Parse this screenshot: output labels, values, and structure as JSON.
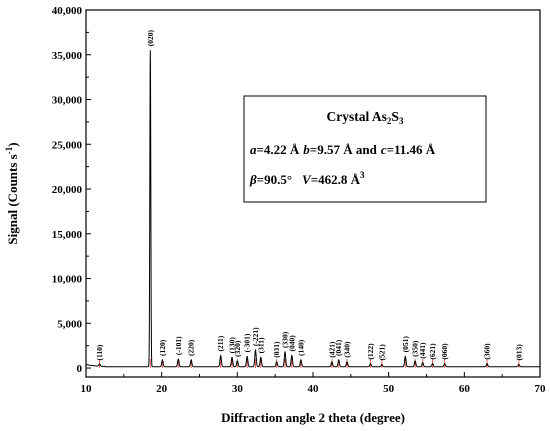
{
  "chart_data": {
    "type": "line",
    "xlabel": "Diffraction angle 2 theta (degree)",
    "ylabel_main": "Signal (Counts s",
    "ylabel_sup": "-1",
    "ylabel_end": ")",
    "xlim": [
      10,
      70
    ],
    "ylim": [
      -1000,
      40000
    ],
    "x_ticks": [
      10,
      20,
      30,
      40,
      50,
      60,
      70
    ],
    "y_ticks": [
      0,
      5000,
      10000,
      15000,
      20000,
      25000,
      30000,
      35000,
      40000
    ],
    "y_tick_labels": [
      "0",
      "5,000",
      "10,000",
      "15,000",
      "20,000",
      "25,000",
      "30,000",
      "35,000",
      "40,000"
    ],
    "baseline": 150,
    "line_color": "#000000",
    "reference_line_color": "#e8524a",
    "peaks": [
      {
        "hkl": "(110)",
        "x": 11.8,
        "y": 400
      },
      {
        "hkl": "(020)",
        "x": 18.5,
        "y": 35500
      },
      {
        "hkl": "(120)",
        "x": 20.1,
        "y": 900
      },
      {
        "hkl": "(-101)",
        "x": 22.2,
        "y": 1000
      },
      {
        "hkl": "(220)",
        "x": 23.9,
        "y": 900
      },
      {
        "hkl": "(211)",
        "x": 27.8,
        "y": 1400
      },
      {
        "hkl": "(130)",
        "x": 29.3,
        "y": 1200
      },
      {
        "hkl": "(320)",
        "x": 30.0,
        "y": 800
      },
      {
        "hkl": "(-301)",
        "x": 31.3,
        "y": 1300
      },
      {
        "hkl": "(-221)",
        "x": 32.4,
        "y": 2000
      },
      {
        "hkl": "(311)",
        "x": 33.1,
        "y": 1200
      },
      {
        "hkl": "(031)",
        "x": 35.2,
        "y": 700
      },
      {
        "hkl": "(330)",
        "x": 36.3,
        "y": 1800
      },
      {
        "hkl": "(040)",
        "x": 37.2,
        "y": 1400
      },
      {
        "hkl": "(140)",
        "x": 38.4,
        "y": 900
      },
      {
        "hkl": "(421)",
        "x": 42.5,
        "y": 700
      },
      {
        "hkl": "(041)",
        "x": 43.4,
        "y": 900
      },
      {
        "hkl": "(340)",
        "x": 44.5,
        "y": 700
      },
      {
        "hkl": "(122)",
        "x": 47.6,
        "y": 500
      },
      {
        "hkl": "(521)",
        "x": 49.1,
        "y": 400
      },
      {
        "hkl": "(051)",
        "x": 52.2,
        "y": 1300
      },
      {
        "hkl": "(350)",
        "x": 53.5,
        "y": 800
      },
      {
        "hkl": "(441)",
        "x": 54.5,
        "y": 600
      },
      {
        "hkl": "(621)",
        "x": 55.8,
        "y": 500
      },
      {
        "hkl": "(060)",
        "x": 57.4,
        "y": 500
      },
      {
        "hkl": "(360)",
        "x": 63.0,
        "y": 500
      },
      {
        "hkl": "(013)",
        "x": 67.2,
        "y": 400
      }
    ],
    "annotation": {
      "title_main": "Crystal As",
      "title_sub1": "2",
      "title_mid": "S",
      "title_sub2": "3",
      "line1_a_var": "a",
      "line1_a_val": "=4.22 Å",
      "line1_b_var": "b",
      "line1_b_val": "=9.57 Å and",
      "line1_c_var": "c",
      "line1_c_val": "=11.46 Å",
      "line2_beta": "β",
      "line2_beta_val": "=90.5°",
      "line2_v_var": "V",
      "line2_v_val": "=462.8 Å",
      "line2_v_sup": "3"
    }
  }
}
